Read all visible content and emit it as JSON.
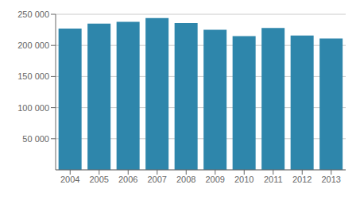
{
  "chart_data": {
    "type": "bar",
    "categories": [
      "2004",
      "2005",
      "2006",
      "2007",
      "2008",
      "2009",
      "2010",
      "2011",
      "2012",
      "2013"
    ],
    "values": [
      227000,
      235000,
      238000,
      244000,
      236000,
      225000,
      215000,
      228000,
      216000,
      211000
    ],
    "color": "#2e86ab",
    "ylim": [
      0,
      250000
    ],
    "yticks": [
      {
        "value": 50000,
        "label": "50 000"
      },
      {
        "value": 100000,
        "label": "100 000"
      },
      {
        "value": 150000,
        "label": "150 000"
      },
      {
        "value": 200000,
        "label": "200 000"
      },
      {
        "value": 250000,
        "label": "250 000"
      }
    ],
    "grid": true
  }
}
